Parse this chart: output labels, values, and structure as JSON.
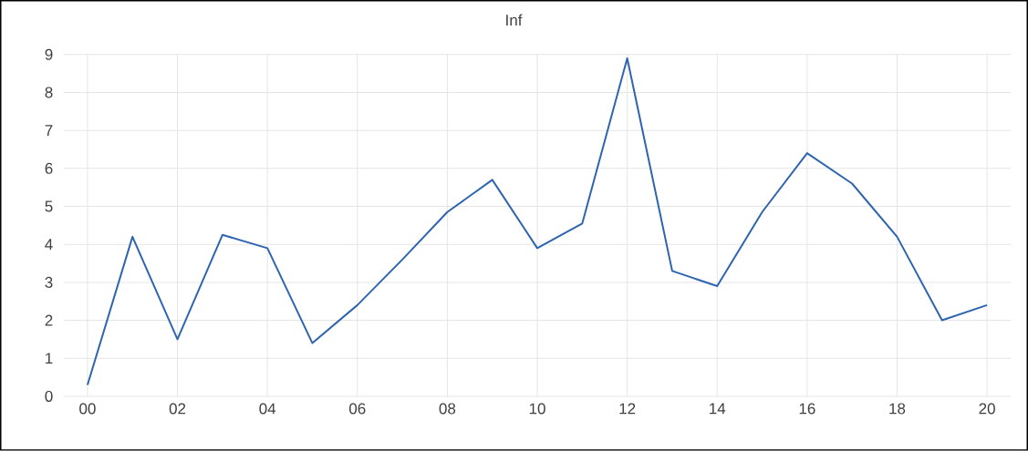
{
  "chart_data": {
    "type": "line",
    "title": "Inf",
    "categories": [
      "00",
      null,
      "02",
      null,
      "04",
      null,
      "06",
      null,
      "08",
      null,
      "10",
      null,
      "12",
      null,
      "14",
      null,
      "16",
      null,
      "18",
      null,
      "20"
    ],
    "series": [
      {
        "color": "#2e64b0",
        "values": [
          0.3,
          4.2,
          1.5,
          4.25,
          3.9,
          1.4,
          2.4,
          3.6,
          4.85,
          5.7,
          3.9,
          4.55,
          8.9,
          3.3,
          2.9,
          4.85,
          6.4,
          5.6,
          4.2,
          2.0,
          2.4
        ]
      }
    ],
    "ylim": [
      0,
      9
    ],
    "yticks": [
      0,
      1,
      2,
      3,
      4,
      5,
      6,
      7,
      8,
      9
    ],
    "grid": true,
    "marker": "none",
    "line_style": "solid"
  }
}
